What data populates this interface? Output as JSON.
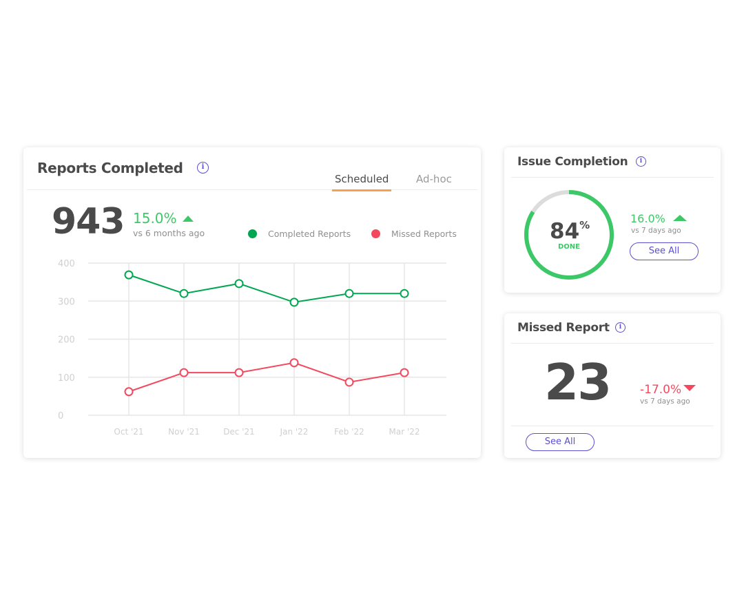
{
  "reports": {
    "title": "Reports Completed",
    "tabs": [
      {
        "label": "Scheduled",
        "active": true
      },
      {
        "label": "Ad-hoc",
        "active": false
      }
    ],
    "total": "943",
    "change": "15.0%",
    "change_direction": "up",
    "change_caption": "vs 6 months ago",
    "legend": [
      {
        "label": "Completed Reports",
        "color": "#00a650"
      },
      {
        "label": "Missed Reports",
        "color": "#f4485e"
      }
    ]
  },
  "chart_data": {
    "type": "line",
    "categories": [
      "Oct '21",
      "Nov '21",
      "Dec '21",
      "Jan '22",
      "Feb '22",
      "Mar '22"
    ],
    "series": [
      {
        "name": "Completed Reports",
        "color": "#00a650",
        "values": [
          369,
          320,
          346,
          297,
          320,
          320
        ]
      },
      {
        "name": "Missed Reports",
        "color": "#f4485e",
        "values": [
          62,
          112,
          112,
          138,
          87,
          112
        ]
      }
    ],
    "yticks": [
      "0",
      "100",
      "200",
      "300",
      "400"
    ],
    "ylim": [
      0,
      400
    ],
    "grid": true,
    "legend_position": "top-right"
  },
  "issue": {
    "title": "Issue Completion",
    "percent_value": 84,
    "percent": "84",
    "percent_sign": "%",
    "done_label": "DONE",
    "change": "16.0%",
    "change_direction": "up",
    "change_caption": "vs 7 days ago",
    "see_all": "See All",
    "ring_color": "#3cc866",
    "ring_track_color": "#dcdcdc"
  },
  "missed": {
    "title": "Missed Report",
    "count": "23",
    "change": "-17.0%",
    "change_direction": "down",
    "change_caption": "vs 7 days ago",
    "see_all": "See All"
  }
}
